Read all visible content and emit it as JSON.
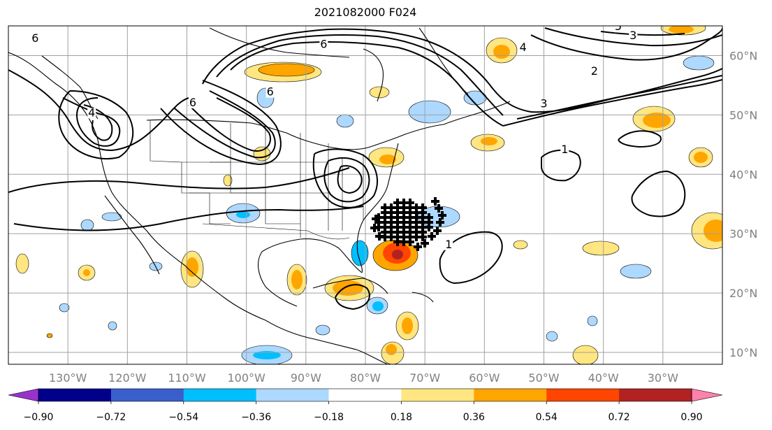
{
  "title": "2021082000 F024",
  "map": {
    "projection": "plate-carree",
    "lon_range": [
      -140,
      -20
    ],
    "lat_range": [
      8,
      65
    ],
    "grid": true,
    "lon_ticks": [
      {
        "value": -130,
        "label": "130°W"
      },
      {
        "value": -120,
        "label": "120°W"
      },
      {
        "value": -110,
        "label": "110°W"
      },
      {
        "value": -100,
        "label": "100°W"
      },
      {
        "value": -90,
        "label": "90°W"
      },
      {
        "value": -80,
        "label": "80°W"
      },
      {
        "value": -70,
        "label": "70°W"
      },
      {
        "value": -60,
        "label": "60°W"
      },
      {
        "value": -50,
        "label": "50°W"
      },
      {
        "value": -40,
        "label": "40°W"
      },
      {
        "value": -30,
        "label": "30°W"
      }
    ],
    "lat_ticks": [
      {
        "value": 60,
        "label": "60°N"
      },
      {
        "value": 50,
        "label": "50°N"
      },
      {
        "value": 40,
        "label": "40°N"
      },
      {
        "value": 30,
        "label": "30°N"
      },
      {
        "value": 20,
        "label": "20°N"
      },
      {
        "value": 10,
        "label": "10°N"
      }
    ],
    "contour_labels": [
      {
        "text": "1",
        "lon": -46.5,
        "lat": 43.8
      },
      {
        "text": "1",
        "lon": -66.0,
        "lat": 27.8
      },
      {
        "text": "6",
        "lon": -109.0,
        "lat": 51.7
      },
      {
        "text": "6",
        "lon": -96.0,
        "lat": 53.5
      },
      {
        "text": "6",
        "lon": -87.0,
        "lat": 61.5
      },
      {
        "text": "6",
        "lon": -135.5,
        "lat": 62.5
      },
      {
        "text": "4",
        "lon": -126.0,
        "lat": 50.0
      },
      {
        "text": "4",
        "lon": -53.5,
        "lat": 61.0
      },
      {
        "text": "2",
        "lon": -41.5,
        "lat": 57.0
      },
      {
        "text": "3",
        "lon": -35.0,
        "lat": 63.0
      },
      {
        "text": "3",
        "lon": -50.0,
        "lat": 51.5
      },
      {
        "text": "5",
        "lon": -37.5,
        "lat": 64.5
      }
    ]
  },
  "colorbar": {
    "levels": [
      -0.9,
      -0.72,
      -0.54,
      -0.36,
      -0.18,
      0.18,
      0.36,
      0.54,
      0.72,
      0.9
    ],
    "tick_labels": [
      "−0.90",
      "−0.72",
      "−0.54",
      "−0.36",
      "−0.18",
      "0.18",
      "0.36",
      "0.54",
      "0.72",
      "0.90"
    ],
    "colors": [
      "#9932cc",
      "#00008b",
      "#3a5fcd",
      "#00bfff",
      "#add8ff",
      "#ffffff",
      "#ffe680",
      "#ffa500",
      "#ff4500",
      "#b22222",
      "#ff82ab"
    ],
    "extend": "both"
  }
}
